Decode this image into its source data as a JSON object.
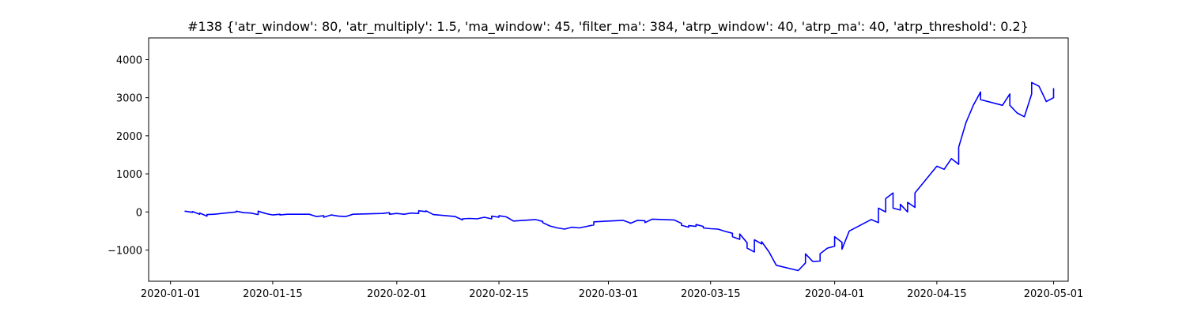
{
  "chart_data": {
    "type": "line",
    "title": "#138 {'atr_window': 80, 'atr_multiply': 1.5, 'ma_window': 45, 'filter_ma': 384, 'atrp_window': 40, 'atrp_ma': 40, 'atrp_threshold': 0.2}",
    "xlabel": "",
    "ylabel": "",
    "x_axis": "date",
    "xlim": [
      "2019-12-29",
      "2020-05-03"
    ],
    "ylim": [
      -1820,
      4570
    ],
    "grid": false,
    "x_ticks": [
      "2020-01-01",
      "2020-01-15",
      "2020-02-01",
      "2020-02-15",
      "2020-03-01",
      "2020-03-15",
      "2020-04-01",
      "2020-04-15",
      "2020-05-01"
    ],
    "y_ticks": [
      -1000,
      0,
      1000,
      2000,
      3000,
      4000
    ],
    "series": [
      {
        "color": "#0000ff",
        "points": [
          [
            "2020-01-03",
            0
          ],
          [
            "2020-01-03",
            20
          ],
          [
            "2020-01-04",
            -10
          ],
          [
            "2020-01-04",
            10
          ],
          [
            "2020-01-05",
            -60
          ],
          [
            "2020-01-05",
            -30
          ],
          [
            "2020-01-06",
            -110
          ],
          [
            "2020-01-06",
            -70
          ],
          [
            "2020-01-07",
            -60
          ],
          [
            "2020-01-08",
            -40
          ],
          [
            "2020-01-10",
            0
          ],
          [
            "2020-01-10",
            20
          ],
          [
            "2020-01-11",
            -20
          ],
          [
            "2020-01-12",
            -30
          ],
          [
            "2020-01-13",
            -70
          ],
          [
            "2020-01-13",
            20
          ],
          [
            "2020-01-14",
            -40
          ],
          [
            "2020-01-15",
            -80
          ],
          [
            "2020-01-16",
            -60
          ],
          [
            "2020-01-16",
            -80
          ],
          [
            "2020-01-17",
            -60
          ],
          [
            "2020-01-20",
            -60
          ],
          [
            "2020-01-21",
            -120
          ],
          [
            "2020-01-22",
            -100
          ],
          [
            "2020-01-22",
            -140
          ],
          [
            "2020-01-23",
            -80
          ],
          [
            "2020-01-24",
            -110
          ],
          [
            "2020-01-25",
            -120
          ],
          [
            "2020-01-26",
            -60
          ],
          [
            "2020-01-30",
            -40
          ],
          [
            "2020-01-31",
            -20
          ],
          [
            "2020-01-31",
            -60
          ],
          [
            "2020-02-01",
            -40
          ],
          [
            "2020-02-02",
            -60
          ],
          [
            "2020-02-03",
            -30
          ],
          [
            "2020-02-04",
            -40
          ],
          [
            "2020-02-04",
            30
          ],
          [
            "2020-02-05",
            10
          ],
          [
            "2020-02-05",
            30
          ],
          [
            "2020-02-06",
            -70
          ],
          [
            "2020-02-09",
            -120
          ],
          [
            "2020-02-10",
            -210
          ],
          [
            "2020-02-10",
            -180
          ],
          [
            "2020-02-11",
            -170
          ],
          [
            "2020-02-12",
            -180
          ],
          [
            "2020-02-13",
            -140
          ],
          [
            "2020-02-14",
            -180
          ],
          [
            "2020-02-14",
            -110
          ],
          [
            "2020-02-15",
            -140
          ],
          [
            "2020-02-15",
            -100
          ],
          [
            "2020-02-16",
            -130
          ],
          [
            "2020-02-17",
            -240
          ],
          [
            "2020-02-20",
            -200
          ],
          [
            "2020-02-21",
            -250
          ],
          [
            "2020-02-21",
            -280
          ],
          [
            "2020-02-22",
            -370
          ],
          [
            "2020-02-23",
            -420
          ],
          [
            "2020-02-24",
            -450
          ],
          [
            "2020-02-25",
            -400
          ],
          [
            "2020-02-26",
            -420
          ],
          [
            "2020-02-27",
            -380
          ],
          [
            "2020-02-28",
            -340
          ],
          [
            "2020-02-28",
            -260
          ],
          [
            "2020-03-03",
            -220
          ],
          [
            "2020-03-04",
            -290
          ],
          [
            "2020-03-04",
            -300
          ],
          [
            "2020-03-05",
            -220
          ],
          [
            "2020-03-06",
            -230
          ],
          [
            "2020-03-06",
            -280
          ],
          [
            "2020-03-07",
            -190
          ],
          [
            "2020-03-10",
            -210
          ],
          [
            "2020-03-11",
            -300
          ],
          [
            "2020-03-11",
            -350
          ],
          [
            "2020-03-12",
            -400
          ],
          [
            "2020-03-12",
            -360
          ],
          [
            "2020-03-13",
            -380
          ],
          [
            "2020-03-13",
            -330
          ],
          [
            "2020-03-14",
            -380
          ],
          [
            "2020-03-14",
            -420
          ],
          [
            "2020-03-15",
            -440
          ],
          [
            "2020-03-16",
            -450
          ],
          [
            "2020-03-17",
            -510
          ],
          [
            "2020-03-18",
            -560
          ],
          [
            "2020-03-18",
            -650
          ],
          [
            "2020-03-19",
            -720
          ],
          [
            "2020-03-19",
            -580
          ],
          [
            "2020-03-20",
            -810
          ],
          [
            "2020-03-20",
            -950
          ],
          [
            "2020-03-21",
            -1050
          ],
          [
            "2020-03-21",
            -730
          ],
          [
            "2020-03-22",
            -840
          ],
          [
            "2020-03-22",
            -780
          ],
          [
            "2020-03-23",
            -1050
          ],
          [
            "2020-03-24",
            -1400
          ],
          [
            "2020-03-27",
            -1540
          ],
          [
            "2020-03-28",
            -1340
          ],
          [
            "2020-03-28",
            -1100
          ],
          [
            "2020-03-29",
            -1300
          ],
          [
            "2020-03-30",
            -1290
          ],
          [
            "2020-03-30",
            -1100
          ],
          [
            "2020-03-31",
            -950
          ],
          [
            "2020-04-01",
            -900
          ],
          [
            "2020-04-01",
            -650
          ],
          [
            "2020-04-02",
            -800
          ],
          [
            "2020-04-02",
            -980
          ],
          [
            "2020-04-03",
            -500
          ],
          [
            "2020-04-06",
            -200
          ],
          [
            "2020-04-07",
            -280
          ],
          [
            "2020-04-07",
            100
          ],
          [
            "2020-04-08",
            0
          ],
          [
            "2020-04-08",
            350
          ],
          [
            "2020-04-09",
            500
          ],
          [
            "2020-04-09",
            100
          ],
          [
            "2020-04-10",
            50
          ],
          [
            "2020-04-10",
            200
          ],
          [
            "2020-04-11",
            0
          ],
          [
            "2020-04-11",
            250
          ],
          [
            "2020-04-12",
            120
          ],
          [
            "2020-04-12",
            500
          ],
          [
            "2020-04-15",
            1200
          ],
          [
            "2020-04-16",
            1120
          ],
          [
            "2020-04-17",
            1400
          ],
          [
            "2020-04-18",
            1250
          ],
          [
            "2020-04-18",
            1700
          ],
          [
            "2020-04-19",
            2350
          ],
          [
            "2020-04-20",
            2800
          ],
          [
            "2020-04-21",
            3150
          ],
          [
            "2020-04-21",
            2950
          ],
          [
            "2020-04-24",
            2800
          ],
          [
            "2020-04-25",
            3100
          ],
          [
            "2020-04-25",
            2800
          ],
          [
            "2020-04-26",
            2600
          ],
          [
            "2020-04-27",
            2500
          ],
          [
            "2020-04-28",
            3100
          ],
          [
            "2020-04-28",
            3400
          ],
          [
            "2020-04-29",
            3300
          ],
          [
            "2020-04-30",
            2900
          ],
          [
            "2020-05-01",
            3000
          ],
          [
            "2020-05-01",
            3250
          ]
        ]
      }
    ]
  }
}
